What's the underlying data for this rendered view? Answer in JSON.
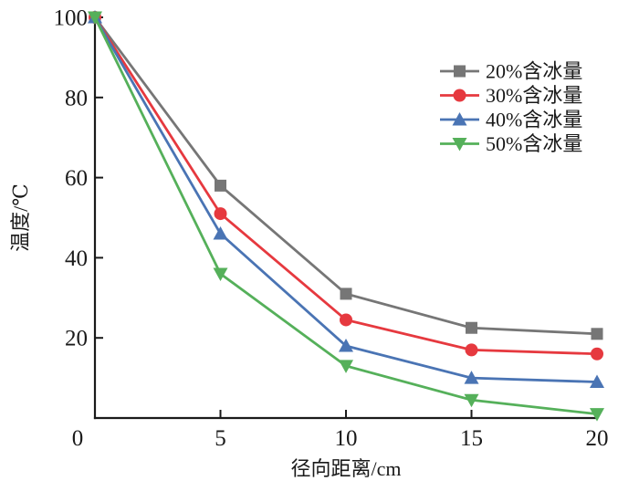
{
  "chart_data": {
    "type": "line",
    "title": "",
    "x": [
      0,
      5,
      10,
      15,
      20
    ],
    "xlabel": "径向距离/cm",
    "ylabel": "温度/℃",
    "xlim": [
      0,
      20
    ],
    "ylim": [
      0,
      100
    ],
    "x_ticks": [
      0,
      5,
      10,
      15,
      20
    ],
    "y_ticks": [
      0,
      20,
      40,
      60,
      80,
      100
    ],
    "grid": false,
    "background": "#ffffff",
    "axis_color": "#1a1a1a",
    "legend": {
      "position": "upper-right-inside",
      "border": false,
      "entries": [
        "20%含冰量",
        "30%含冰量",
        "40%含冰量",
        "50%含冰量"
      ]
    },
    "series": [
      {
        "name": "20%含冰量",
        "color": "#767676",
        "marker": "square",
        "values": [
          100,
          58,
          31,
          22.5,
          21
        ]
      },
      {
        "name": "30%含冰量",
        "color": "#e6393f",
        "marker": "circle",
        "values": [
          100,
          51,
          24.5,
          17,
          16
        ]
      },
      {
        "name": "40%含冰量",
        "color": "#4a74b4",
        "marker": "triangle-up",
        "values": [
          100,
          46,
          18,
          10,
          9
        ]
      },
      {
        "name": "50%含冰量",
        "color": "#55b05a",
        "marker": "triangle-down",
        "values": [
          100,
          36,
          13,
          4.5,
          1
        ]
      }
    ]
  }
}
